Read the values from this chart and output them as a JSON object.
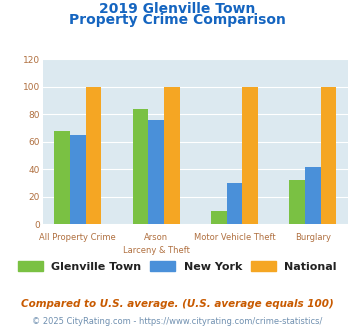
{
  "title_line1": "2019 Glenville Town",
  "title_line2": "Property Crime Comparison",
  "cat_labels_top": [
    "All Property Crime",
    "Arson",
    "Motor Vehicle Theft",
    "Burglary"
  ],
  "cat_labels_bottom": [
    "",
    "Larceny & Theft",
    "",
    ""
  ],
  "glenville": [
    68,
    84,
    10,
    32
  ],
  "new_york": [
    65,
    76,
    30,
    42
  ],
  "national": [
    100,
    100,
    100,
    100
  ],
  "bar_colors": {
    "glenville": "#7ac143",
    "new_york": "#4a90d9",
    "national": "#f5a623"
  },
  "ylim": [
    0,
    120
  ],
  "yticks": [
    0,
    20,
    40,
    60,
    80,
    100,
    120
  ],
  "plot_bg": "#dce9f0",
  "title_color": "#1565c0",
  "tick_color": "#b07040",
  "legend_labels": [
    "Glenville Town",
    "New York",
    "National"
  ],
  "footnote1": "Compared to U.S. average. (U.S. average equals 100)",
  "footnote2": "© 2025 CityRating.com - https://www.cityrating.com/crime-statistics/",
  "footnote1_color": "#c85a00",
  "footnote2_color": "#7090b0"
}
